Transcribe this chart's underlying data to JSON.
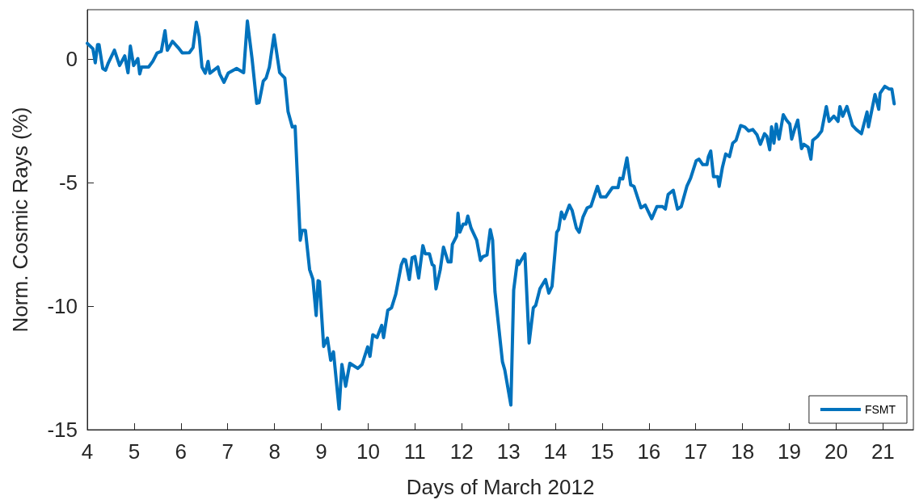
{
  "chart_data": {
    "type": "line",
    "xlabel": "Days of March 2012",
    "ylabel": "Norm. Cosmic Rays (%)",
    "x": [
      4.0,
      4.12,
      4.17,
      4.22,
      4.25,
      4.33,
      4.39,
      4.45,
      4.58,
      4.69,
      4.8,
      4.87,
      4.92,
      4.99,
      5.08,
      5.12,
      5.16,
      5.31,
      5.4,
      5.49,
      5.58,
      5.66,
      5.71,
      5.82,
      5.94,
      6.03,
      6.18,
      6.26,
      6.33,
      6.39,
      6.45,
      6.52,
      6.58,
      6.62,
      6.79,
      6.83,
      6.92,
      7.01,
      7.19,
      7.34,
      7.42,
      7.52,
      7.62,
      7.67,
      7.76,
      7.82,
      7.89,
      7.99,
      8.11,
      8.22,
      8.29,
      8.38,
      8.44,
      8.55,
      8.59,
      8.66,
      8.75,
      8.82,
      8.89,
      8.93,
      8.96,
      9.05,
      9.13,
      9.2,
      9.26,
      9.38,
      9.44,
      9.52,
      9.61,
      9.78,
      9.87,
      9.99,
      10.04,
      10.1,
      10.19,
      10.29,
      10.33,
      10.42,
      10.5,
      10.59,
      10.71,
      10.76,
      10.8,
      10.88,
      10.94,
      11.0,
      11.08,
      11.17,
      11.22,
      11.31,
      11.37,
      11.41,
      11.45,
      11.54,
      11.61,
      11.71,
      11.77,
      11.8,
      11.89,
      11.92,
      11.96,
      12.03,
      12.09,
      12.13,
      12.2,
      12.32,
      12.4,
      12.45,
      12.54,
      12.61,
      12.66,
      12.71,
      12.87,
      12.92,
      13.05,
      13.11,
      13.19,
      13.22,
      13.35,
      13.44,
      13.53,
      13.58,
      13.67,
      13.79,
      13.86,
      13.93,
      14.03,
      14.07,
      14.13,
      14.19,
      14.3,
      14.36,
      14.45,
      14.51,
      14.59,
      14.68,
      14.76,
      14.9,
      14.97,
      15.08,
      15.22,
      15.34,
      15.38,
      15.44,
      15.53,
      15.61,
      15.68,
      15.83,
      15.92,
      16.06,
      16.17,
      16.29,
      16.35,
      16.41,
      16.52,
      16.61,
      16.69,
      16.81,
      16.89,
      17.01,
      17.07,
      17.15,
      17.24,
      17.27,
      17.32,
      17.38,
      17.47,
      17.5,
      17.57,
      17.64,
      17.72,
      17.79,
      17.86,
      17.96,
      18.05,
      18.13,
      18.22,
      18.31,
      18.38,
      18.47,
      18.52,
      18.58,
      18.62,
      18.67,
      18.72,
      18.78,
      18.87,
      18.94,
      19.01,
      19.05,
      19.11,
      19.18,
      19.26,
      19.31,
      19.4,
      19.46,
      19.5,
      19.6,
      19.69,
      19.79,
      19.85,
      19.95,
      20.04,
      20.08,
      20.14,
      20.23,
      20.35,
      20.43,
      20.54,
      20.66,
      20.69,
      20.83,
      20.91,
      20.94,
      21.04,
      21.13,
      21.19,
      21.24
    ],
    "series": [
      {
        "name": "FSMT",
        "color": "#0072bd",
        "values": [
          0.64,
          0.42,
          -0.15,
          0.59,
          0.59,
          -0.38,
          -0.45,
          -0.15,
          0.36,
          -0.26,
          0.13,
          -0.55,
          0.53,
          -0.26,
          0.02,
          -0.6,
          -0.32,
          -0.32,
          -0.09,
          0.25,
          0.31,
          1.15,
          0.36,
          0.72,
          0.47,
          0.25,
          0.26,
          0.47,
          1.49,
          0.92,
          -0.32,
          -0.57,
          -0.09,
          -0.57,
          -0.32,
          -0.6,
          -0.94,
          -0.57,
          -0.38,
          -0.55,
          1.54,
          0.02,
          -1.79,
          -1.76,
          -0.89,
          -0.77,
          -0.32,
          0.98,
          -0.55,
          -0.77,
          -2.13,
          -2.75,
          -2.72,
          -7.33,
          -6.93,
          -6.93,
          -8.52,
          -8.91,
          -10.38,
          -8.97,
          -9.0,
          -11.63,
          -11.29,
          -12.19,
          -11.85,
          -14.17,
          -12.36,
          -13.24,
          -12.31,
          -12.52,
          -12.36,
          -11.65,
          -12.03,
          -11.16,
          -11.27,
          -10.78,
          -11.27,
          -10.17,
          -10.07,
          -9.52,
          -8.32,
          -8.1,
          -8.13,
          -8.92,
          -8.04,
          -7.99,
          -8.86,
          -7.55,
          -7.88,
          -7.88,
          -8.32,
          -8.37,
          -9.3,
          -8.53,
          -7.61,
          -8.21,
          -8.21,
          -7.5,
          -7.17,
          -6.24,
          -7.01,
          -6.68,
          -6.68,
          -6.35,
          -6.84,
          -7.33,
          -8.15,
          -8.0,
          -7.93,
          -6.9,
          -7.33,
          -9.41,
          -12.25,
          -12.58,
          -14.0,
          -9.35,
          -8.15,
          -8.31,
          -7.88,
          -11.49,
          -10.07,
          -9.97,
          -9.3,
          -8.92,
          -9.47,
          -9.19,
          -7.01,
          -6.9,
          -6.19,
          -6.46,
          -5.91,
          -6.13,
          -6.84,
          -7.01,
          -6.4,
          -6.02,
          -5.96,
          -5.15,
          -5.58,
          -5.58,
          -5.2,
          -5.2,
          -4.82,
          -4.85,
          -4.0,
          -5.09,
          -5.15,
          -6.02,
          -5.91,
          -6.46,
          -5.97,
          -5.97,
          -6.07,
          -5.48,
          -5.31,
          -6.07,
          -5.97,
          -5.15,
          -4.82,
          -4.11,
          -4.05,
          -4.27,
          -4.27,
          -3.95,
          -3.72,
          -4.76,
          -4.76,
          -5.15,
          -4.38,
          -3.84,
          -3.95,
          -3.4,
          -3.29,
          -2.69,
          -2.75,
          -2.91,
          -2.85,
          -3.07,
          -3.45,
          -3.02,
          -3.13,
          -3.67,
          -2.74,
          -3.4,
          -2.63,
          -3.24,
          -2.25,
          -2.47,
          -2.63,
          -3.24,
          -2.85,
          -2.47,
          -3.62,
          -3.45,
          -3.56,
          -4.05,
          -3.29,
          -3.13,
          -2.91,
          -1.92,
          -2.52,
          -2.31,
          -2.52,
          -1.92,
          -2.31,
          -1.92,
          -2.69,
          -2.85,
          -3.02,
          -2.14,
          -2.74,
          -1.43,
          -2.03,
          -1.38,
          -1.1,
          -1.21,
          -1.21,
          -1.81
        ]
      }
    ],
    "xlim": [
      4,
      21.65
    ],
    "ylim": [
      -15,
      2
    ],
    "xticks": [
      4,
      5,
      6,
      7,
      8,
      9,
      10,
      11,
      12,
      13,
      14,
      15,
      16,
      17,
      18,
      19,
      20,
      21
    ],
    "yticks": [
      -15,
      -10,
      -5,
      0
    ],
    "grid": false,
    "legend": "bottom right",
    "marker": "none",
    "line_style": "solid"
  }
}
